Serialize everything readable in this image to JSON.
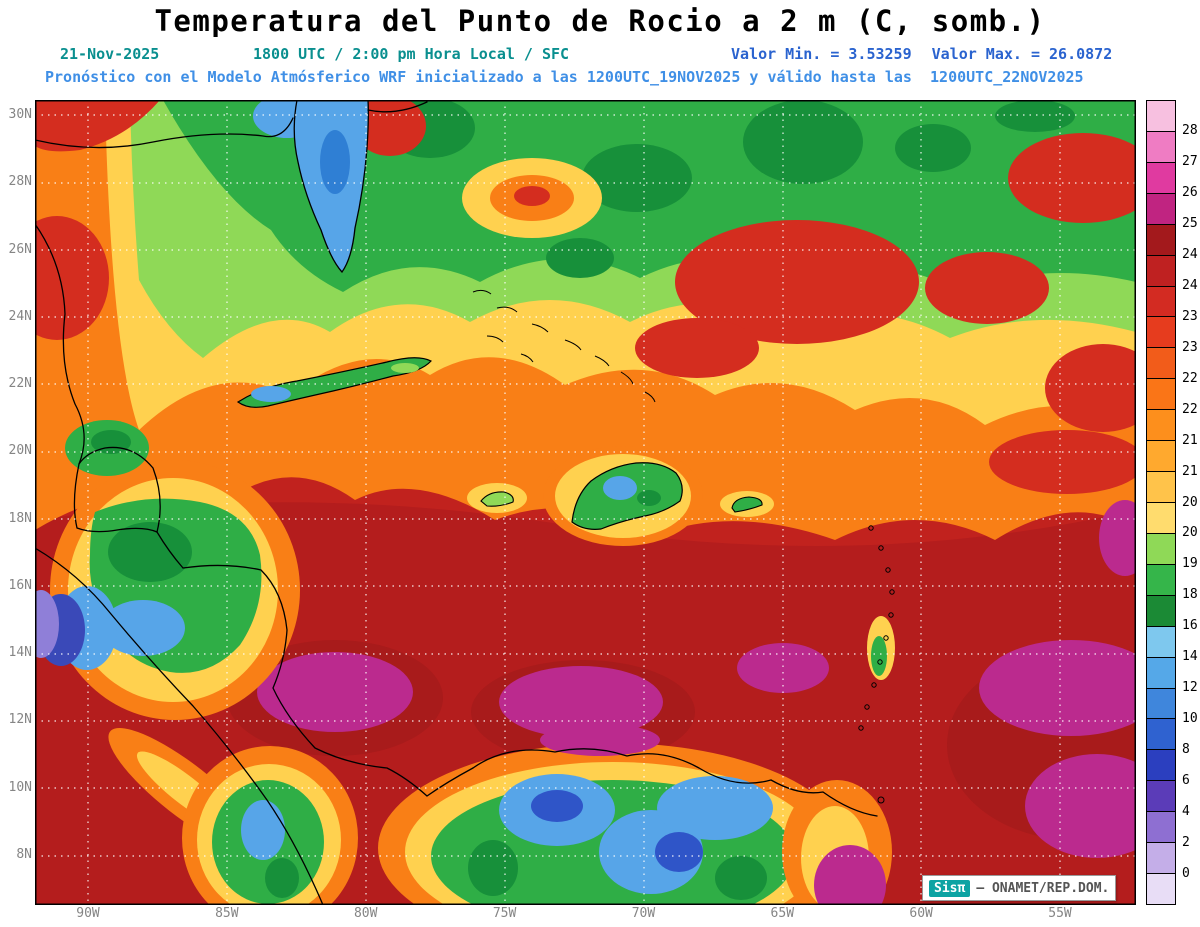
{
  "title": "Temperatura del Punto de Rocio a 2 m (C, somb.)",
  "header": {
    "date": "21-Nov-2025",
    "time_line": "1800 UTC / 2:00 pm Hora Local / SFC",
    "min_label": "Valor Min. = 3.53259",
    "max_label": "Valor Max. = 26.0872",
    "forecast_line": "Pronóstico con el Modelo Atmósferico WRF inicializado a las 1200UTC_19NOV2025 y válido hasta las  1200UTC_22NOV2025"
  },
  "map": {
    "lat_labels": [
      "30N",
      "28N",
      "26N",
      "24N",
      "22N",
      "20N",
      "18N",
      "16N",
      "14N",
      "12N",
      "10N",
      "8N"
    ],
    "lon_labels": [
      "90W",
      "85W",
      "80W",
      "75W",
      "70W",
      "65W",
      "60W",
      "55W"
    ]
  },
  "colorbar": {
    "labels": [
      "28",
      "27",
      "26",
      "25",
      "24.5",
      "24",
      "23.5",
      "23",
      "22.5",
      "22",
      "21.5",
      "21",
      "20.5",
      "20",
      "19",
      "18",
      "16",
      "14",
      "12",
      "10",
      "8",
      "6",
      "4",
      "2",
      "0"
    ],
    "colors": [
      "#f7c0e0",
      "#ef7cc3",
      "#e03aa0",
      "#c02481",
      "#a3191c",
      "#bf2121",
      "#d32b22",
      "#e63c1e",
      "#f25c1a",
      "#fa7517",
      "#fd8f1c",
      "#ffa92e",
      "#ffc34a",
      "#ffdc6e",
      "#8fd957",
      "#35b54a",
      "#1b8a35",
      "#7ec8ee",
      "#55a8e8",
      "#3f86dc",
      "#2f62d0",
      "#2b3fbf",
      "#5b3cb8",
      "#8e6fd2",
      "#c4aee8",
      "#e8ddf6"
    ]
  },
  "watermark": {
    "brand": "Sisπ",
    "text": "– ONAMET/REP.DOM."
  },
  "chart_data": {
    "type": "heatmap",
    "title": "Temperatura del Punto de Rocio a 2 m (C, somb.)",
    "variable": "dew point temperature at 2 m",
    "units": "C",
    "valid": "21-Nov-2025 1800 UTC / 2:00 pm Hora Local / SFC",
    "model": "WRF inicializado 1200UTC_19NOV2025, válido hasta 1200UTC_22NOV2025",
    "value_min": 3.53259,
    "value_max": 26.0872,
    "lon_ticks_w": [
      90,
      85,
      80,
      75,
      70,
      65,
      60,
      55
    ],
    "lat_ticks_n": [
      8,
      10,
      12,
      14,
      16,
      18,
      20,
      22,
      24,
      26,
      28,
      30
    ],
    "levels": [
      0,
      2,
      4,
      6,
      8,
      10,
      12,
      14,
      16,
      18,
      19,
      20,
      20.5,
      21,
      21.5,
      22,
      22.5,
      23,
      23.5,
      24,
      24.5,
      25,
      26,
      27,
      28
    ],
    "regional_values_c_approx": {
      "caribbean_sea_core": 24.5,
      "south_caribbean_magenta_patches": 25.5,
      "gulf_of_mexico_north": 19.5,
      "florida_peninsula": 14,
      "bahamas_band": 21,
      "hispaniola_interior": 18,
      "central_america_highlands": 12,
      "colombia_venezuela_interior": 12,
      "northeast_atlantic_sector": 22
    },
    "legend_position": "right",
    "grid": "dotted white lat/lon grid"
  }
}
